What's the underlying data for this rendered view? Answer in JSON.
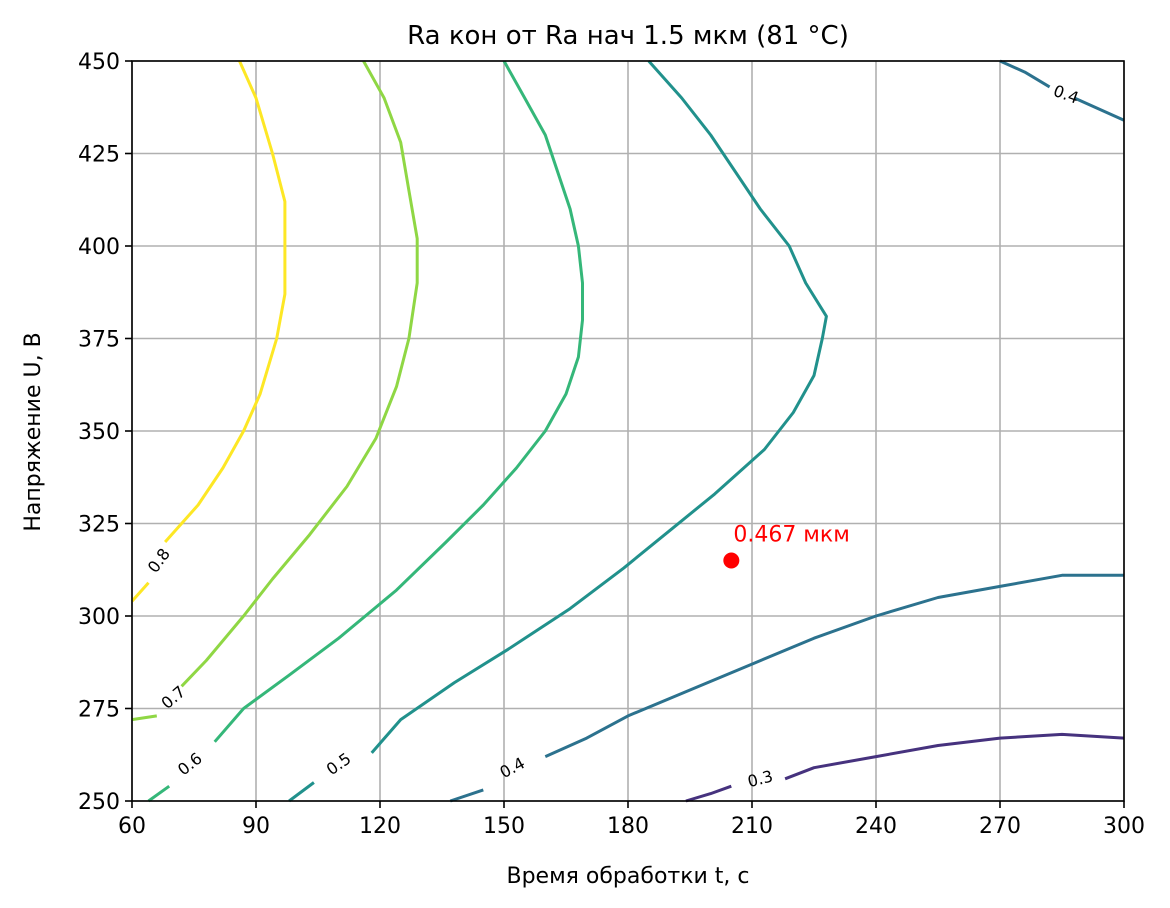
{
  "chart_data": {
    "type": "contour",
    "title": "Ra кон от Ra нач 1.5 мкм (81 °C)",
    "xlabel": "Время обработки t, с",
    "ylabel": "Напряжение U, В",
    "xlim": [
      60,
      300
    ],
    "ylim": [
      250,
      450
    ],
    "xticks": [
      60,
      90,
      120,
      150,
      180,
      210,
      240,
      270,
      300
    ],
    "yticks": [
      250,
      275,
      300,
      325,
      350,
      375,
      400,
      425,
      450
    ],
    "grid": true,
    "levels": [
      {
        "level": "0.8",
        "color": "#fde725",
        "segments": [
          [
            [
              86,
              450
            ],
            [
              90,
              440
            ],
            [
              94,
              425
            ],
            [
              97,
              412
            ],
            [
              97,
              400
            ],
            [
              97,
              387
            ],
            [
              95,
              375
            ],
            [
              91,
              360
            ],
            [
              87,
              350
            ],
            [
              82,
              340
            ],
            [
              76,
              330
            ],
            [
              68,
              320
            ]
          ],
          [
            [
              64,
              309
            ],
            [
              60,
              304
            ]
          ]
        ],
        "labels": [
          {
            "text": "0.8",
            "x": 66.5,
            "y": 315,
            "angle": -54
          }
        ]
      },
      {
        "level": "0.7",
        "color": "#8fd744",
        "segments": [
          [
            [
              116,
              450
            ],
            [
              121,
              440
            ],
            [
              125,
              428
            ],
            [
              127,
              415
            ],
            [
              129,
              402
            ],
            [
              129,
              390
            ],
            [
              127,
              375
            ],
            [
              124,
              362
            ],
            [
              119,
              348
            ],
            [
              112,
              335
            ],
            [
              103,
              322
            ],
            [
              94,
              310
            ],
            [
              87,
              300
            ],
            [
              78,
              288
            ],
            [
              72,
              281
            ]
          ],
          [
            [
              66,
              273
            ],
            [
              60,
              272
            ]
          ]
        ],
        "labels": [
          {
            "text": "0.7",
            "x": 70,
            "y": 278,
            "angle": -40
          }
        ]
      },
      {
        "level": "0.6",
        "color": "#35b779",
        "segments": [
          [
            [
              150,
              450
            ],
            [
              155,
              440
            ],
            [
              160,
              430
            ],
            [
              163,
              420
            ],
            [
              166,
              410
            ],
            [
              168,
              400
            ],
            [
              169,
              390
            ],
            [
              169,
              380
            ],
            [
              168,
              370
            ],
            [
              165,
              360
            ],
            [
              160,
              350
            ],
            [
              153,
              340
            ],
            [
              145,
              330
            ],
            [
              136,
              320
            ],
            [
              124,
              307
            ],
            [
              110,
              294
            ],
            [
              98,
              284
            ],
            [
              87,
              275
            ],
            [
              80,
              266
            ]
          ],
          [
            [
              69,
              254
            ],
            [
              64,
              250
            ]
          ]
        ],
        "labels": [
          {
            "text": "0.6",
            "x": 74,
            "y": 260,
            "angle": -38
          }
        ]
      },
      {
        "level": "0.5",
        "color": "#21918c",
        "segments": [
          [
            [
              185,
              450
            ],
            [
              193,
              440
            ],
            [
              200,
              430
            ],
            [
              206,
              420
            ],
            [
              212,
              410
            ],
            [
              219,
              400
            ],
            [
              223,
              390
            ],
            [
              228,
              381
            ],
            [
              227,
              375
            ],
            [
              225,
              365
            ],
            [
              220,
              355
            ],
            [
              213,
              345
            ],
            [
              201,
              333
            ],
            [
              190,
              323
            ],
            [
              179,
              313
            ],
            [
              166,
              302
            ],
            [
              151,
              291
            ],
            [
              138,
              282
            ],
            [
              125,
              272
            ],
            [
              118,
              263
            ]
          ],
          [
            [
              104,
              255
            ],
            [
              98,
              250
            ]
          ]
        ],
        "labels": [
          {
            "text": "0.5",
            "x": 110,
            "y": 260,
            "angle": -35
          }
        ]
      },
      {
        "level": "0.4",
        "color": "#2c728e",
        "segments": [
          [
            [
              270,
              450
            ],
            [
              276,
              447
            ],
            [
              282,
              443
            ]
          ],
          [
            [
              288,
              440
            ],
            [
              294,
              437
            ],
            [
              300,
              434
            ]
          ],
          [
            [
              160,
              262
            ],
            [
              170,
              267
            ],
            [
              180,
              273
            ],
            [
              195,
              280
            ],
            [
              210,
              287
            ],
            [
              225,
              294
            ],
            [
              240,
              300
            ],
            [
              255,
              305
            ],
            [
              270,
              308
            ],
            [
              285,
              311
            ],
            [
              300,
              311
            ]
          ],
          [
            [
              137,
              250
            ],
            [
              145,
              253
            ]
          ]
        ],
        "labels": [
          {
            "text": "0.4",
            "x": 286,
            "y": 441,
            "angle": 20
          },
          {
            "text": "0.4",
            "x": 152,
            "y": 259,
            "angle": -28
          }
        ]
      },
      {
        "level": "0.3",
        "color": "#46327e",
        "segments": [
          [
            [
              194,
              250
            ],
            [
              200,
              252
            ],
            [
              205,
              254
            ]
          ],
          [
            [
              218,
              256
            ],
            [
              225,
              259
            ],
            [
              240,
              262
            ],
            [
              255,
              265
            ],
            [
              270,
              267
            ],
            [
              285,
              268
            ],
            [
              300,
              267
            ]
          ]
        ],
        "labels": [
          {
            "text": "0.3",
            "x": 212,
            "y": 256,
            "angle": -14
          }
        ]
      }
    ],
    "annotations": [
      {
        "text": "0.467 мкм",
        "x": 205,
        "y": 315,
        "color": "#ff0000"
      }
    ]
  }
}
